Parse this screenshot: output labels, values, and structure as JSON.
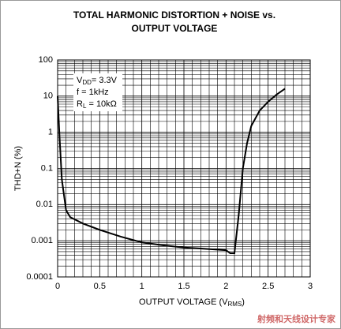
{
  "chart_data": {
    "type": "line",
    "title": "TOTAL HARMONIC DISTORTION + NOISE vs. OUTPUT VOLTAGE",
    "x_label": [
      "OUTPUT VOLTAGE (V",
      "RMS",
      ")"
    ],
    "y_label": "THD+N (%)",
    "annotation": [
      [
        "V",
        "DD",
        "= 3.3V"
      ],
      [
        "f = 1kHz",
        "",
        ""
      ],
      [
        "R",
        "L",
        " = 10kΩ"
      ]
    ],
    "watermark": "射频和天线设计专家",
    "x": [
      0,
      0.02,
      0.05,
      0.1,
      0.15,
      0.3,
      0.5,
      0.75,
      1.0,
      1.25,
      1.5,
      1.75,
      2.0,
      2.05,
      2.1,
      2.15,
      2.2,
      2.25,
      2.3,
      2.4,
      2.5,
      2.6,
      2.7
    ],
    "series": [
      {
        "color": "#000000",
        "values": [
          10,
          1,
          0.05,
          0.007,
          0.0045,
          0.003,
          0.002,
          0.0013,
          0.0009,
          0.00075,
          0.00065,
          0.0006,
          0.00055,
          0.00045,
          0.00045,
          0.005,
          0.1,
          0.5,
          1.5,
          4,
          7,
          11,
          16
        ]
      }
    ],
    "xlim": [
      0,
      3
    ],
    "xticks": [
      0,
      0.5,
      1,
      1.5,
      2,
      2.5,
      3
    ],
    "ylim": [
      0.0001,
      100
    ],
    "yticks": [
      0.0001,
      0.001,
      0.01,
      0.1,
      1,
      10,
      100
    ],
    "log_y": true,
    "grid": true
  }
}
